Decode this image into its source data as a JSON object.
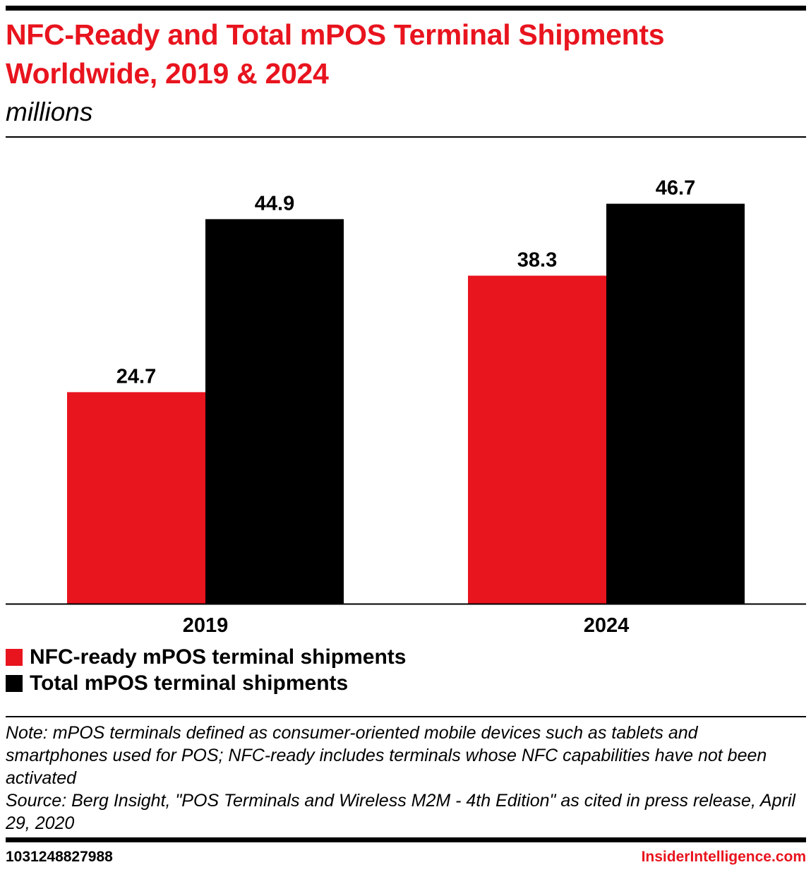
{
  "header": {
    "title": "NFC-Ready and Total mPOS Terminal Shipments Worldwide, 2019 & 2024",
    "subtitle": "millions"
  },
  "chart_data": {
    "type": "bar",
    "categories": [
      "2019",
      "2024"
    ],
    "series": [
      {
        "name": "NFC-ready mPOS terminal shipments",
        "values": [
          24.7,
          38.3
        ],
        "color": "#e8141e"
      },
      {
        "name": "Total mPOS terminal shipments",
        "values": [
          44.9,
          46.7
        ],
        "color": "#000000"
      }
    ],
    "title": "NFC-Ready and Total mPOS Terminal Shipments Worldwide, 2019 & 2024",
    "ylabel": "millions",
    "ylim": [
      0,
      54
    ],
    "grid": false,
    "legend": "bottom-left",
    "data_labels": true
  },
  "footer": {
    "note": "Note: mPOS terminals defined as consumer-oriented mobile devices such as tablets and smartphones used for POS; NFC-ready includes terminals whose NFC capabilities have not been activated",
    "source": "Source: Berg Insight, \"POS Terminals and Wireless M2M - 4th Edition\" as cited in press release, April 29, 2020",
    "chart_id": "1031248827988",
    "brand": "InsiderIntelligence.com"
  },
  "colors": {
    "accent": "#e8141e",
    "text": "#000000"
  }
}
